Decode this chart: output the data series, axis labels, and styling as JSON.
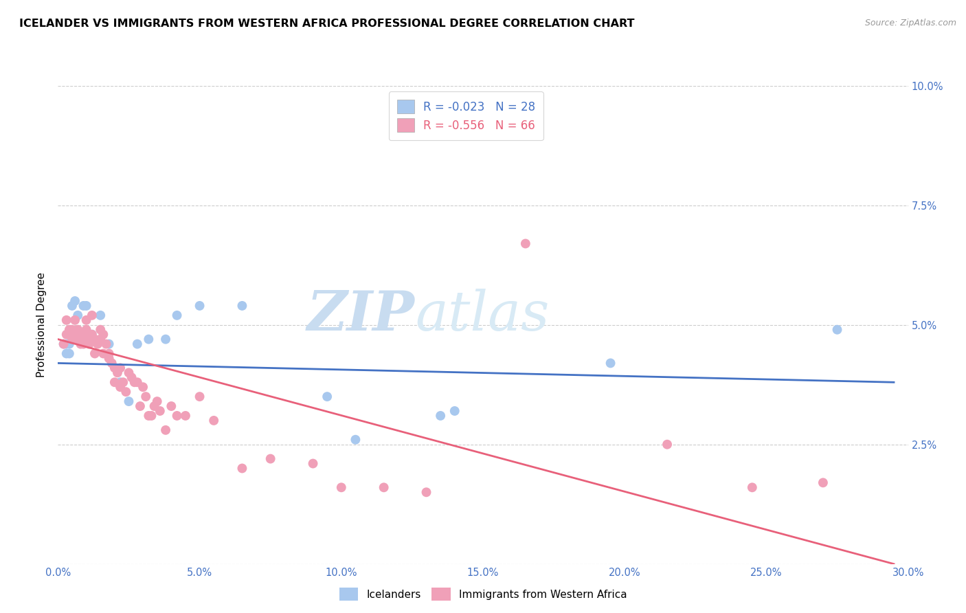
{
  "title": "ICELANDER VS IMMIGRANTS FROM WESTERN AFRICA PROFESSIONAL DEGREE CORRELATION CHART",
  "source": "Source: ZipAtlas.com",
  "ylabel": "Professional Degree",
  "xlim": [
    0.0,
    0.3
  ],
  "ylim": [
    0.0,
    0.1
  ],
  "xticks": [
    0.0,
    0.05,
    0.1,
    0.15,
    0.2,
    0.25,
    0.3
  ],
  "yticks": [
    0.0,
    0.025,
    0.05,
    0.075,
    0.1
  ],
  "ytick_labels": [
    "",
    "2.5%",
    "5.0%",
    "7.5%",
    "10.0%"
  ],
  "xtick_labels": [
    "0.0%",
    "5.0%",
    "10.0%",
    "15.0%",
    "20.0%",
    "25.0%",
    "30.0%"
  ],
  "color_blue": "#A8C8EE",
  "color_pink": "#F0A0B8",
  "color_blue_line": "#4472C4",
  "color_pink_line": "#E8607A",
  "color_blue_text": "#4472C4",
  "color_pink_text": "#E8607A",
  "legend_blue_R": "R = -0.023",
  "legend_blue_N": "N = 28",
  "legend_pink_R": "R = -0.556",
  "legend_pink_N": "N = 66",
  "watermark_zip": "ZIP",
  "watermark_atlas": "atlas",
  "blue_scatter_x": [
    0.002,
    0.003,
    0.003,
    0.004,
    0.004,
    0.005,
    0.006,
    0.007,
    0.008,
    0.009,
    0.01,
    0.012,
    0.015,
    0.018,
    0.022,
    0.025,
    0.028,
    0.032,
    0.038,
    0.042,
    0.05,
    0.065,
    0.095,
    0.105,
    0.135,
    0.14,
    0.195,
    0.275
  ],
  "blue_scatter_y": [
    0.046,
    0.044,
    0.046,
    0.044,
    0.046,
    0.054,
    0.055,
    0.052,
    0.048,
    0.054,
    0.054,
    0.048,
    0.052,
    0.046,
    0.038,
    0.034,
    0.046,
    0.047,
    0.047,
    0.052,
    0.054,
    0.054,
    0.035,
    0.026,
    0.031,
    0.032,
    0.042,
    0.049
  ],
  "pink_scatter_x": [
    0.002,
    0.003,
    0.003,
    0.004,
    0.005,
    0.005,
    0.006,
    0.006,
    0.007,
    0.007,
    0.008,
    0.008,
    0.009,
    0.009,
    0.01,
    0.01,
    0.01,
    0.011,
    0.012,
    0.012,
    0.013,
    0.013,
    0.014,
    0.015,
    0.015,
    0.016,
    0.016,
    0.017,
    0.018,
    0.018,
    0.019,
    0.02,
    0.02,
    0.021,
    0.022,
    0.022,
    0.023,
    0.024,
    0.025,
    0.026,
    0.027,
    0.028,
    0.029,
    0.03,
    0.031,
    0.032,
    0.033,
    0.034,
    0.035,
    0.036,
    0.038,
    0.04,
    0.042,
    0.045,
    0.05,
    0.055,
    0.065,
    0.075,
    0.09,
    0.1,
    0.115,
    0.13,
    0.165,
    0.215,
    0.245,
    0.27
  ],
  "pink_scatter_y": [
    0.046,
    0.048,
    0.051,
    0.049,
    0.047,
    0.049,
    0.048,
    0.051,
    0.047,
    0.049,
    0.048,
    0.046,
    0.048,
    0.046,
    0.051,
    0.049,
    0.047,
    0.046,
    0.052,
    0.048,
    0.047,
    0.044,
    0.046,
    0.049,
    0.047,
    0.048,
    0.044,
    0.046,
    0.044,
    0.043,
    0.042,
    0.041,
    0.038,
    0.04,
    0.041,
    0.037,
    0.038,
    0.036,
    0.04,
    0.039,
    0.038,
    0.038,
    0.033,
    0.037,
    0.035,
    0.031,
    0.031,
    0.033,
    0.034,
    0.032,
    0.028,
    0.033,
    0.031,
    0.031,
    0.035,
    0.03,
    0.02,
    0.022,
    0.021,
    0.016,
    0.016,
    0.015,
    0.067,
    0.025,
    0.016,
    0.017
  ],
  "blue_trend_x": [
    0.0,
    0.295
  ],
  "blue_trend_y": [
    0.042,
    0.038
  ],
  "pink_trend_x": [
    0.0,
    0.295
  ],
  "pink_trend_y": [
    0.047,
    0.0
  ]
}
